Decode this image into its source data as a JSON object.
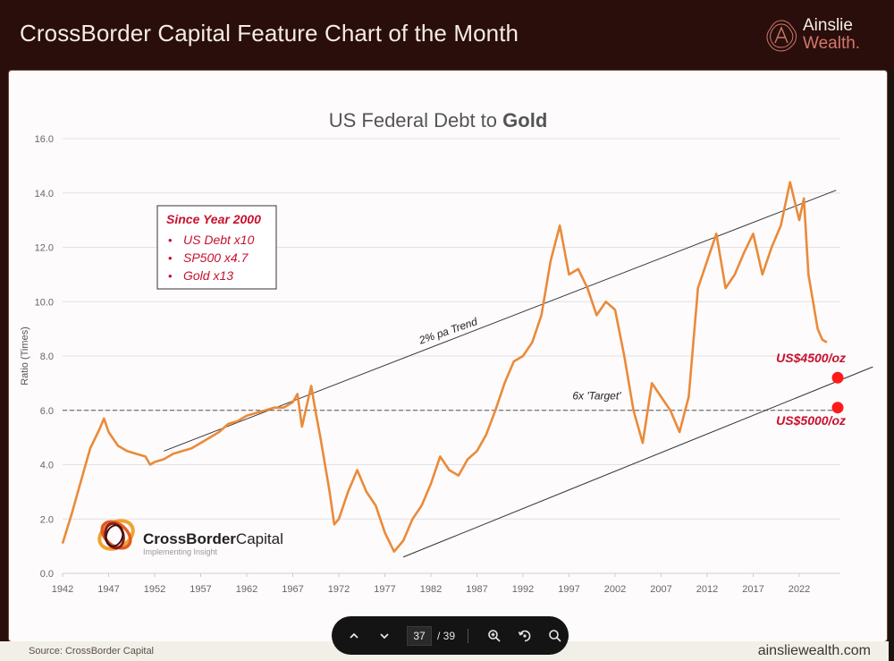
{
  "header": {
    "title": "CrossBorder Capital Feature Chart of the Month",
    "brand_line1": "Ainslie",
    "brand_line2": "Wealth."
  },
  "footer": {
    "source": "Source: CrossBorder Capital",
    "site": "ainsliewealth.com"
  },
  "toolbar": {
    "page_current": "37",
    "page_total": "/ 39",
    "icons": [
      "chevron-up-icon",
      "chevron-down-icon",
      "zoom-in-icon",
      "rotate-icon",
      "search-icon"
    ]
  },
  "colors": {
    "header_bg": "#2a0e0b",
    "series": "#ea8a3a",
    "annotation_red": "#c8102e",
    "marker_red": "#ff1a1a"
  },
  "logo": {
    "name_bold": "CrossBorder",
    "name_light": "Capital",
    "tagline": "Implementing Insight"
  },
  "chart_data": {
    "type": "line",
    "title": "US Federal Debt to Gold",
    "title_plain": "US Federal Debt to ",
    "title_bold": "Gold",
    "xlabel": "",
    "ylabel": "Ratio (Times)",
    "ylim": [
      0,
      16
    ],
    "yticks": [
      "0.0",
      "2.0",
      "4.0",
      "6.0",
      "8.0",
      "10.0",
      "12.0",
      "14.0",
      "16.0"
    ],
    "xticks": [
      "1942",
      "1947",
      "1952",
      "1957",
      "1962",
      "1967",
      "1972",
      "1977",
      "1982",
      "1987",
      "1992",
      "1997",
      "2002",
      "2007",
      "2012",
      "2017",
      "2022"
    ],
    "grid": true,
    "series": [
      {
        "name": "US Federal Debt to Gold Ratio",
        "x": [
          1942,
          1943,
          1944,
          1945,
          1946,
          1946.5,
          1947,
          1948,
          1949,
          1950,
          1951,
          1951.5,
          1952,
          1953,
          1954,
          1955,
          1956,
          1957,
          1958,
          1959,
          1960,
          1961,
          1962,
          1963,
          1964,
          1965,
          1966,
          1967,
          1967.5,
          1968,
          1969,
          1969.5,
          1970,
          1971,
          1971.5,
          1972,
          1973,
          1974,
          1975,
          1976,
          1977,
          1978,
          1979,
          1980,
          1981,
          1982,
          1983,
          1984,
          1985,
          1986,
          1987,
          1988,
          1989,
          1990,
          1991,
          1992,
          1993,
          1994,
          1995,
          1996,
          1997,
          1998,
          1999,
          2000,
          2001,
          2002,
          2003,
          2004,
          2005,
          2006,
          2007,
          2008,
          2009,
          2010,
          2011,
          2012,
          2013,
          2014,
          2015,
          2016,
          2017,
          2018,
          2019,
          2020,
          2021,
          2022,
          2022.5,
          2023,
          2024,
          2024.5,
          2025
        ],
        "values": [
          1.1,
          2.2,
          3.4,
          4.6,
          5.3,
          5.7,
          5.2,
          4.7,
          4.5,
          4.4,
          4.3,
          4.0,
          4.1,
          4.2,
          4.4,
          4.5,
          4.6,
          4.8,
          5.0,
          5.2,
          5.5,
          5.6,
          5.8,
          5.9,
          6.0,
          6.1,
          6.1,
          6.3,
          6.6,
          5.4,
          6.9,
          5.9,
          5.0,
          3.0,
          1.8,
          2.0,
          3.0,
          3.8,
          3.0,
          2.5,
          1.5,
          0.8,
          1.2,
          2.0,
          2.5,
          3.3,
          4.3,
          3.8,
          3.6,
          4.2,
          4.5,
          5.1,
          6.0,
          7.0,
          7.8,
          8.0,
          8.5,
          9.5,
          11.5,
          12.8,
          11.0,
          11.2,
          10.5,
          9.5,
          10.0,
          9.7,
          8.0,
          6.0,
          4.8,
          7.0,
          6.5,
          6.0,
          5.2,
          6.5,
          10.5,
          11.5,
          12.5,
          10.5,
          11.0,
          11.8,
          12.5,
          11.0,
          12.0,
          12.8,
          14.4,
          13.0,
          13.8,
          11.0,
          9.0,
          8.6,
          8.5
        ],
        "color": "#ea8a3a"
      }
    ],
    "reference_lines": [
      {
        "name": "6x 'Target'",
        "type": "horizontal-dashed",
        "y": 6.0
      },
      {
        "name": "2% pa Trend",
        "type": "trend-upper",
        "x": [
          1953,
          2026
        ],
        "y": [
          4.5,
          14.1
        ]
      },
      {
        "name": "lower trend",
        "type": "trend-lower",
        "x": [
          1979,
          2030
        ],
        "y": [
          0.6,
          7.6
        ]
      }
    ],
    "annotations": [
      {
        "text": "2% pa Trend",
        "x": 1984,
        "y": 8.8
      },
      {
        "text": "6x 'Target'",
        "x": 2000,
        "y": 6.4
      },
      {
        "text": "US$4500/oz",
        "x": 2026,
        "y": 7.9,
        "marker_y": 7.2
      },
      {
        "text": "US$5000/oz",
        "x": 2026,
        "y": 5.6,
        "marker_y": 6.1
      }
    ],
    "info_box": {
      "title": "Since Year 2000",
      "items": [
        "US Debt x10",
        "SP500 x4.7",
        "Gold x13"
      ]
    }
  }
}
